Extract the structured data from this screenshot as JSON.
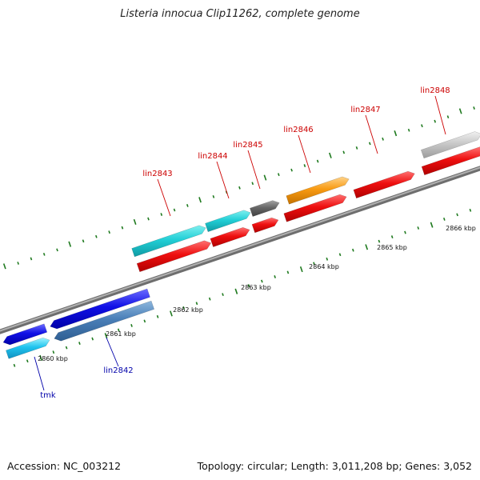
{
  "title": "Listeria innocua Clip11262, complete genome",
  "footer": {
    "accession": "Accession: NC_003212",
    "summary": "Topology: circular; Length: 3,011,208 bp; Genes: 3,052"
  },
  "colors": {
    "backbone": "#8c8c8c",
    "tick": "#1f7a1f",
    "label_top": "#cc0000",
    "label_bottom": "#0000aa"
  },
  "scale_labels": [
    "2860 kbp",
    "2861 kbp",
    "2862 kbp",
    "2863 kbp",
    "2864 kbp",
    "2865 kbp",
    "2866 kbp"
  ],
  "genes": [
    {
      "name": "tmk",
      "label_side": "bottom"
    },
    {
      "name": "lin2842",
      "label_side": "bottom"
    },
    {
      "name": "lin2843",
      "label_side": "top"
    },
    {
      "name": "lin2844",
      "label_side": "top"
    },
    {
      "name": "lin2845",
      "label_side": "top"
    },
    {
      "name": "lin2846",
      "label_side": "top"
    },
    {
      "name": "lin2847",
      "label_side": "top"
    },
    {
      "name": "lin2848",
      "label_side": "top"
    }
  ]
}
